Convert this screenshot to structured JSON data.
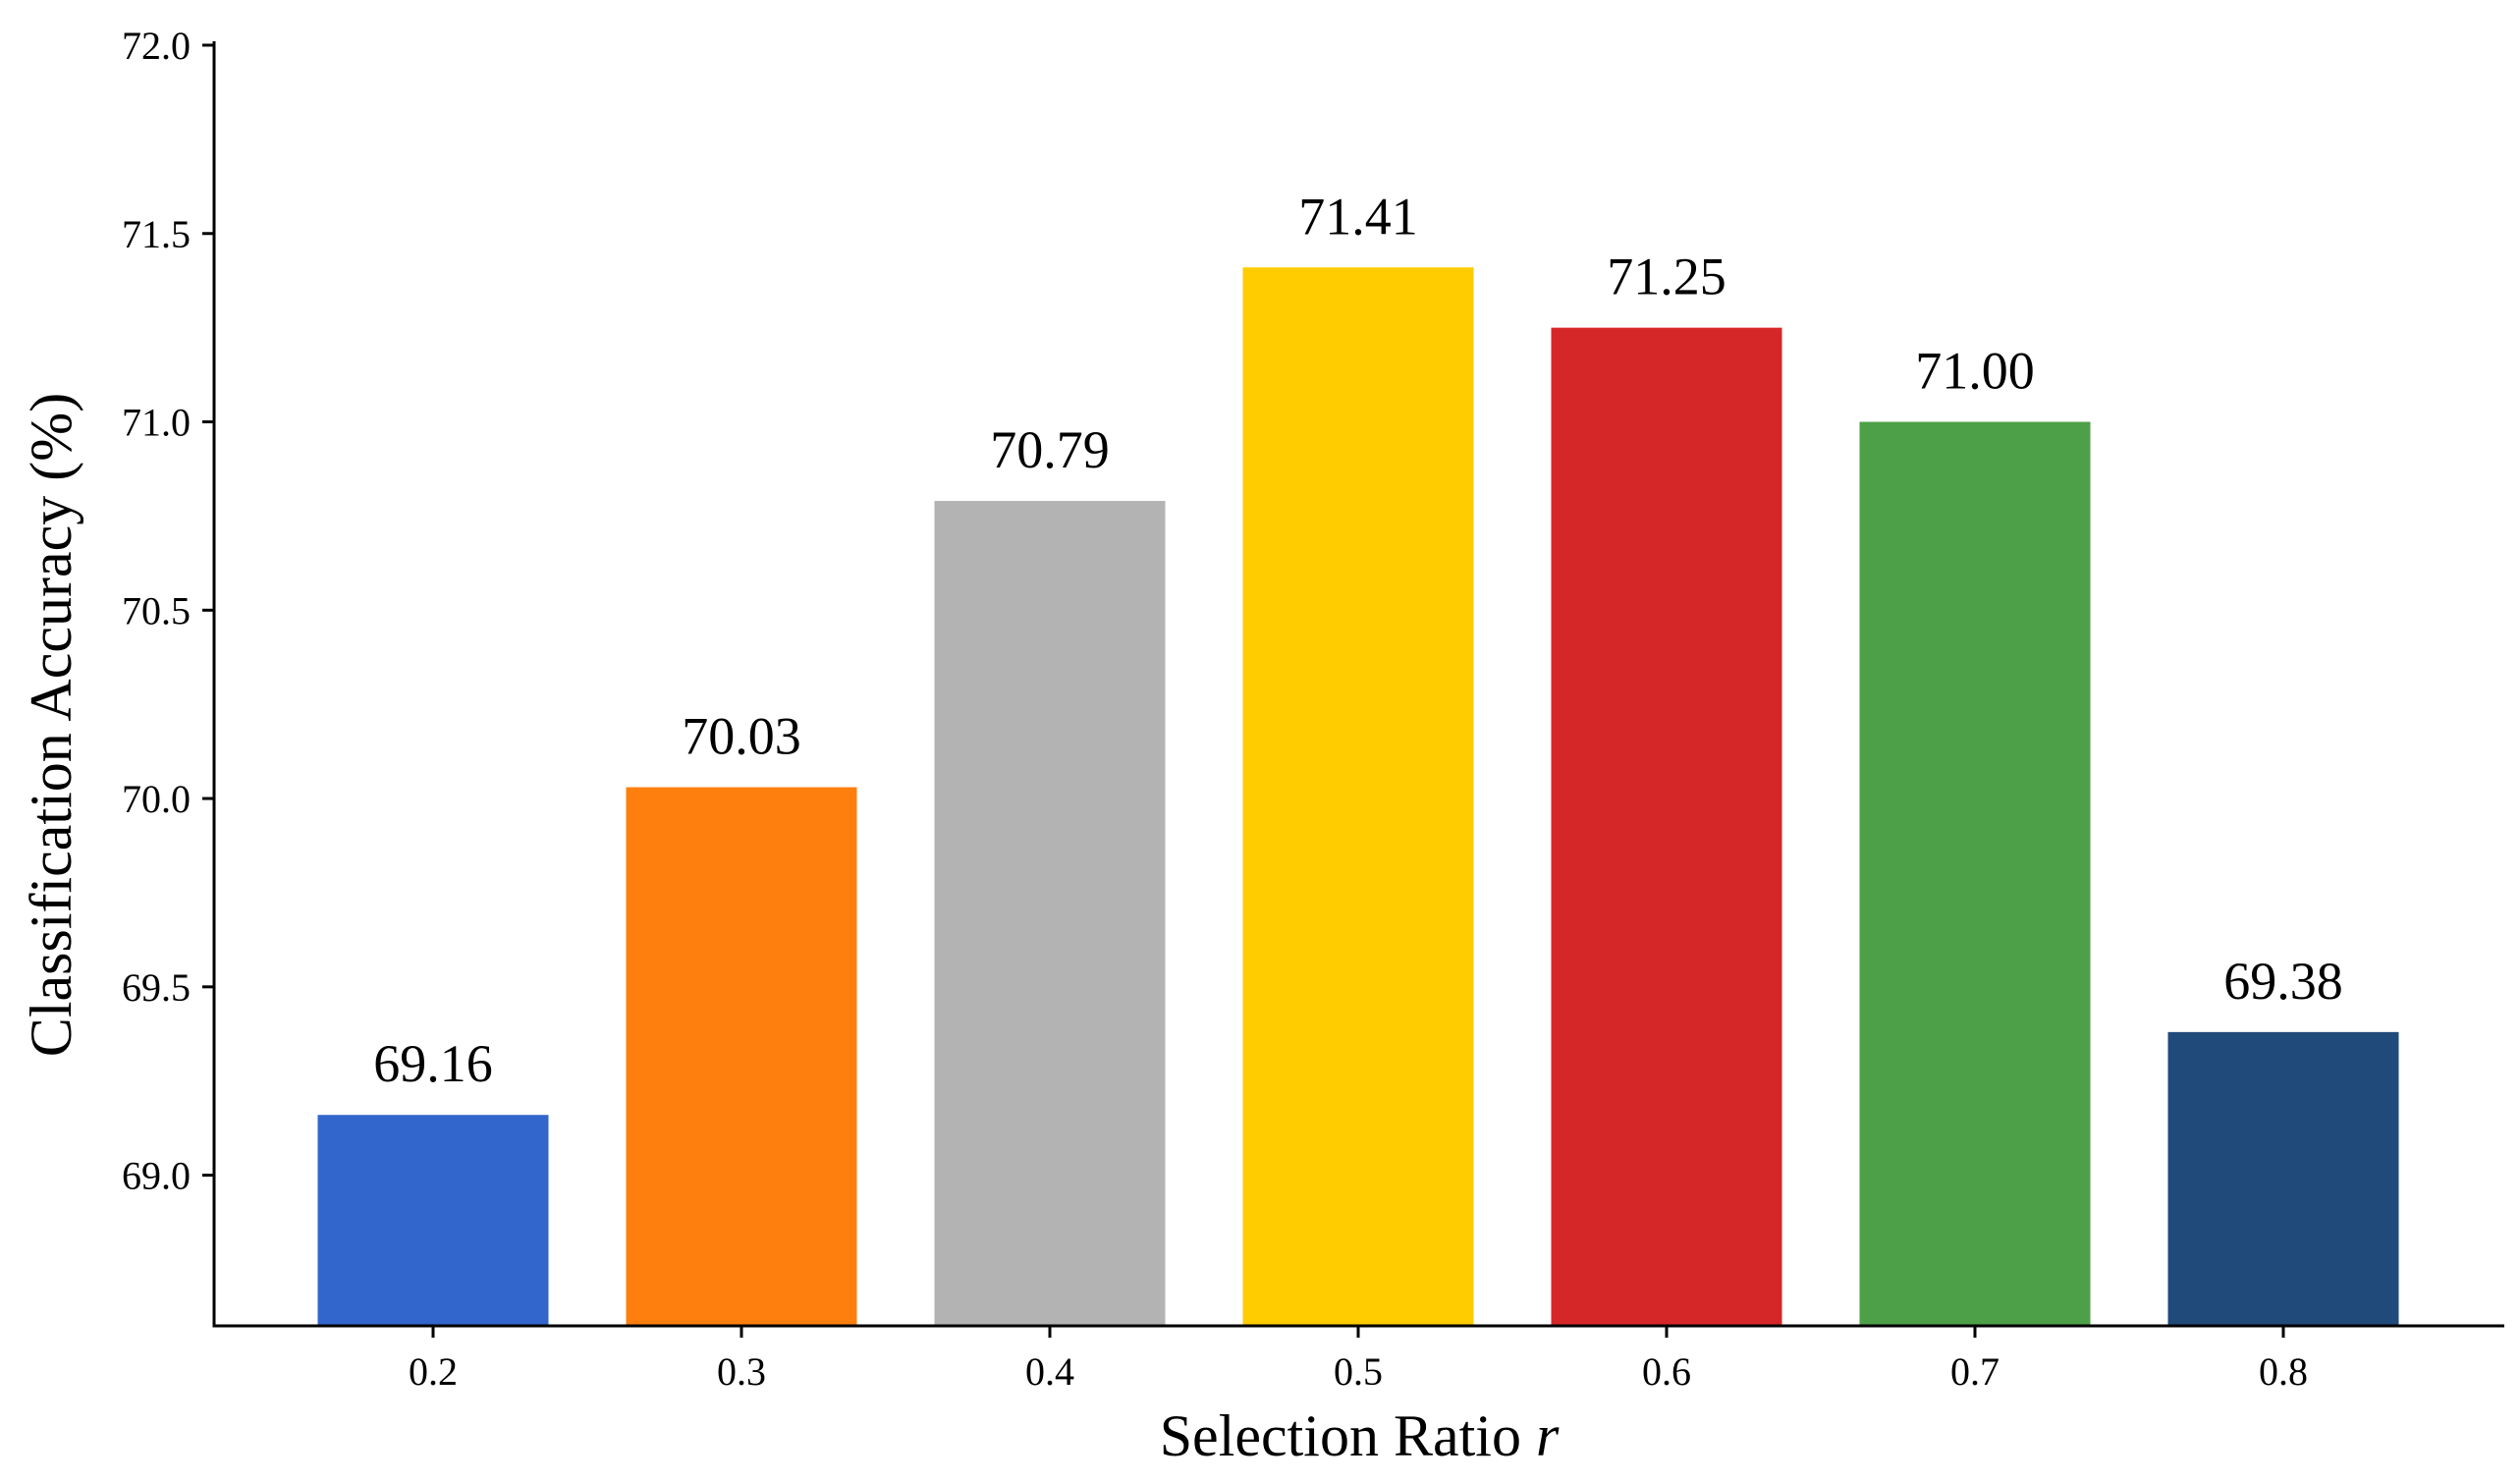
{
  "chart_data": {
    "type": "bar",
    "categories": [
      "0.2",
      "0.3",
      "0.4",
      "0.5",
      "0.6",
      "0.7",
      "0.8"
    ],
    "values": [
      69.16,
      70.03,
      70.79,
      71.41,
      71.25,
      71.0,
      69.38
    ],
    "value_labels": [
      "69.16",
      "70.03",
      "70.79",
      "71.41",
      "71.25",
      "71.00",
      "69.38"
    ],
    "colors": [
      "#3366cc",
      "#ff7f0e",
      "#b3b3b3",
      "#ffcc00",
      "#d62728",
      "#4da047",
      "#204a7a"
    ],
    "title": "",
    "xlabel": "Selection Ratio ",
    "xlabel_italic": "r",
    "ylabel": "Classification Accuracy (%)",
    "ylim": [
      68.6,
      72.0
    ],
    "yticks": [
      "69.0",
      "69.5",
      "70.0",
      "70.5",
      "71.0",
      "71.5",
      "72.0"
    ],
    "grid": false,
    "legend": "none"
  }
}
